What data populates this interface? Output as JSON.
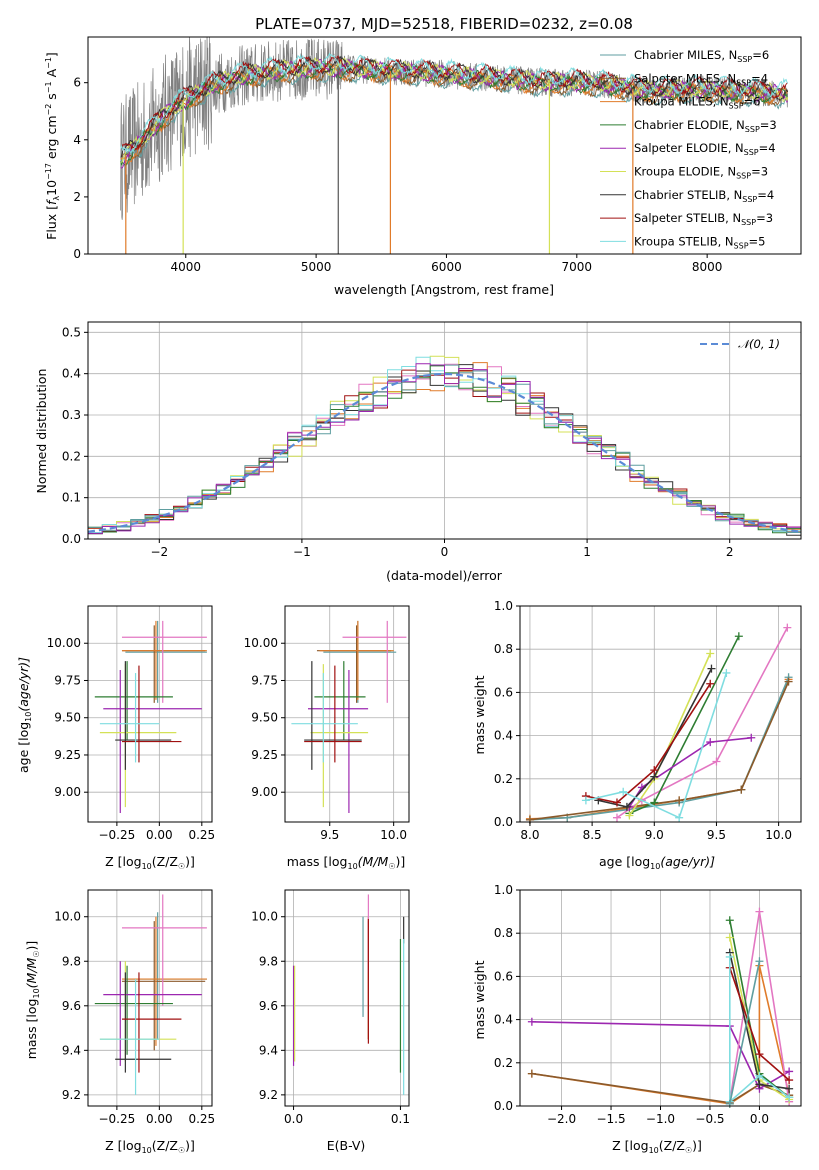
{
  "colors": {
    "c_miles_chab": "#5f9ea0",
    "c_miles_salp": "#8b5a2b",
    "c_miles_krou": "#e07b2a",
    "c_elodie_chab": "#2e7d32",
    "c_elodie_salp": "#9c27b0",
    "c_elodie_krou": "#d4e157",
    "c_stelib_chab": "#333333",
    "c_stelib_salp": "#a01010",
    "c_stelib_krou": "#7fdde0",
    "normal": "#5b8bd6",
    "gauss_axis_pink": "#e377c2",
    "grid": "#b0b0b0"
  },
  "chart_data": [
    {
      "id": "spectrum",
      "type": "line",
      "title": "PLATE=0737, MJD=52518, FIBERID=0232, z=0.08",
      "xlabel": "wavelength [Angstrom, rest frame]",
      "ylabel_parts": [
        "Flux [",
        "f",
        "λ",
        "10",
        "−17",
        " erg cm",
        "−2",
        " s",
        "−1",
        " A",
        "−1",
        "]"
      ],
      "xlim": [
        3250,
        8720
      ],
      "ylim": [
        0,
        7.6
      ],
      "xticks": [
        4000,
        5000,
        6000,
        7000,
        8000
      ],
      "yticks": [
        0,
        2,
        4,
        6
      ],
      "continuum": {
        "x": [
          3500,
          3550,
          3650,
          3750,
          3850,
          4000,
          4200,
          4400,
          4600,
          4800,
          5000,
          5200,
          5400,
          5600,
          5800,
          6000,
          6200,
          6400,
          6600,
          6800,
          7000,
          7200,
          7400,
          7600,
          7800,
          8000,
          8200,
          8400,
          8600
        ],
        "y": [
          3.3,
          3.5,
          3.9,
          4.4,
          4.9,
          5.4,
          5.9,
          6.2,
          6.35,
          6.45,
          6.5,
          6.5,
          6.45,
          6.4,
          6.35,
          6.3,
          6.2,
          6.15,
          6.05,
          6.0,
          6.0,
          5.95,
          5.8,
          5.7,
          5.75,
          5.75,
          5.7,
          5.65,
          5.6
        ]
      },
      "legend": [
        {
          "label": "Chabrier MILES, N",
          "sub": "SSP",
          "tail": "=6"
        },
        {
          "label": "Salpeter MILES, N",
          "sub": "SSP",
          "tail": "=4"
        },
        {
          "label": "Kroupa MILES, N",
          "sub": "SSP",
          "tail": "=6"
        },
        {
          "label": "Chabrier ELODIE, N",
          "sub": "SSP",
          "tail": "=3"
        },
        {
          "label": "Salpeter ELODIE, N",
          "sub": "SSP",
          "tail": "=4"
        },
        {
          "label": "Kroupa ELODIE, N",
          "sub": "SSP",
          "tail": "=3"
        },
        {
          "label": "Chabrier STELIB, N",
          "sub": "SSP",
          "tail": "=4"
        },
        {
          "label": "Salpeter STELIB, N",
          "sub": "SSP",
          "tail": "=3"
        },
        {
          "label": "Kroupa STELIB, N",
          "sub": "SSP",
          "tail": "=5"
        }
      ],
      "legend_position": "right"
    },
    {
      "id": "residuals",
      "type": "line",
      "xlabel": "(data-model)/error",
      "ylabel": "Normed distribution",
      "xlim": [
        -2.5,
        2.5
      ],
      "ylim": [
        0,
        0.525
      ],
      "xticks": [
        -2,
        -1,
        0,
        1,
        2
      ],
      "yticks": [
        0.0,
        0.1,
        0.2,
        0.3,
        0.4,
        0.5
      ],
      "bin_width": 0.1,
      "bin_start": -2.5,
      "series_model": "N(0,1)",
      "legend": "𝒩(0, 1)",
      "legend_position": "top-right",
      "grid": true
    },
    {
      "id": "age_vs_Z",
      "type": "scatter",
      "xlabel": "Z [log",
      "xlabel_sub": "10",
      "xlabel_tail": "(Z/Z",
      "xlabel_end": ")]",
      "ylabel": "age  [log",
      "ylabel_sub": "10",
      "ylabel_tail": "(age/yr)]",
      "xlim": [
        -0.42,
        0.31
      ],
      "ylim": [
        8.8,
        10.25
      ],
      "xticks": [
        -0.25,
        0.0,
        0.25
      ],
      "xtick_labels": [
        "−0.25",
        "0.00",
        "0.25"
      ],
      "yticks": [
        9.0,
        9.25,
        9.5,
        9.75,
        10.0
      ],
      "ytick_labels": [
        "9.00",
        "9.25",
        "9.50",
        "9.75",
        "10.00"
      ],
      "grid": true
    },
    {
      "id": "age_vs_mass",
      "type": "scatter",
      "xlabel": "mass [log",
      "xlabel_sub": "10",
      "xlabel_tail": "(M/M",
      "xlabel_end": ")]",
      "xlim": [
        9.15,
        10.12
      ],
      "ylim": [
        8.8,
        10.25
      ],
      "xticks": [
        9.5,
        10.0
      ],
      "xtick_labels": [
        "9.5",
        "10.0"
      ],
      "yticks": [
        9.0,
        9.25,
        9.5,
        9.75,
        10.0
      ],
      "ytick_labels": [
        "9.00",
        "9.25",
        "9.50",
        "9.75",
        "10.00"
      ],
      "grid": true
    },
    {
      "id": "weight_vs_age",
      "type": "line",
      "xlabel": "age  [log",
      "xlabel_sub": "10",
      "xlabel_tail": "(age/yr)]",
      "ylabel": "mass weight",
      "xlim": [
        7.92,
        10.18
      ],
      "ylim": [
        0,
        1.0
      ],
      "xticks": [
        8.0,
        8.5,
        9.0,
        9.5,
        10.0
      ],
      "xtick_labels": [
        "8.0",
        "8.5",
        "9.0",
        "9.5",
        "10.0"
      ],
      "yticks": [
        0.0,
        0.2,
        0.4,
        0.6,
        0.8,
        1.0
      ],
      "ytick_labels": [
        "0.0",
        "0.2",
        "0.4",
        "0.6",
        "0.8",
        "1.0"
      ],
      "grid": true,
      "series": [
        {
          "color": "c_miles_krou",
          "x": [
            8.0,
            8.3,
            9.2,
            9.7,
            10.08
          ],
          "y": [
            0.015,
            0.02,
            0.1,
            0.15,
            0.66
          ]
        },
        {
          "color": "c_miles_chab",
          "x": [
            8.0,
            8.3,
            9.2,
            9.7,
            10.08
          ],
          "y": [
            0.01,
            0.02,
            0.09,
            0.15,
            0.67
          ]
        },
        {
          "color": "c_miles_salp",
          "x": [
            8.0,
            9.2,
            9.7,
            10.08
          ],
          "y": [
            0.01,
            0.1,
            0.15,
            0.65
          ]
        },
        {
          "color": "gauss_axis_pink",
          "x": [
            8.7,
            8.9,
            9.5,
            10.07
          ],
          "y": [
            0.02,
            0.1,
            0.28,
            0.9
          ]
        },
        {
          "color": "c_elodie_chab",
          "x": [
            8.8,
            9.0,
            9.68
          ],
          "y": [
            0.04,
            0.09,
            0.86
          ]
        },
        {
          "color": "c_elodie_salp",
          "x": [
            8.8,
            8.9,
            9.45,
            9.78
          ],
          "y": [
            0.07,
            0.16,
            0.37,
            0.39
          ]
        },
        {
          "color": "c_elodie_krou",
          "x": [
            8.8,
            9.0,
            9.45
          ],
          "y": [
            0.03,
            0.2,
            0.78
          ]
        },
        {
          "color": "c_stelib_chab",
          "x": [
            8.55,
            8.78,
            9.0,
            9.46
          ],
          "y": [
            0.1,
            0.07,
            0.21,
            0.71
          ]
        },
        {
          "color": "c_stelib_salp",
          "x": [
            8.45,
            8.7,
            9.0,
            9.45
          ],
          "y": [
            0.12,
            0.09,
            0.24,
            0.64
          ]
        },
        {
          "color": "c_stelib_krou",
          "x": [
            8.45,
            8.75,
            9.2,
            9.58
          ],
          "y": [
            0.1,
            0.14,
            0.02,
            0.69
          ]
        }
      ]
    },
    {
      "id": "mass_vs_Z",
      "type": "scatter",
      "xlabel": "Z [log",
      "xlabel_sub": "10",
      "xlabel_tail": "(Z/Z",
      "xlabel_end": ")]",
      "ylabel": "mass [log",
      "ylabel_sub": "10",
      "ylabel_tail": "(M/M",
      "ylabel_end": ")]",
      "xlim": [
        -0.42,
        0.31
      ],
      "ylim": [
        9.15,
        10.12
      ],
      "xticks": [
        -0.25,
        0.0,
        0.25
      ],
      "xtick_labels": [
        "−0.25",
        "0.00",
        "0.25"
      ],
      "yticks": [
        9.2,
        9.4,
        9.6,
        9.8,
        10.0
      ],
      "ytick_labels": [
        "9.2",
        "9.4",
        "9.6",
        "9.8",
        "10.0"
      ],
      "grid": true
    },
    {
      "id": "mass_vs_EBV",
      "type": "scatter",
      "xlabel": "E(B-V)",
      "xlim": [
        -0.008,
        0.108
      ],
      "ylim": [
        9.15,
        10.12
      ],
      "xticks": [
        0.0,
        0.1
      ],
      "xtick_labels": [
        "0.0",
        "0.1"
      ],
      "yticks": [
        9.2,
        9.4,
        9.6,
        9.8,
        10.0
      ],
      "ytick_labels": [
        "9.2",
        "9.4",
        "9.6",
        "9.8",
        "10.0"
      ],
      "grid": true
    },
    {
      "id": "weight_vs_Z",
      "type": "line",
      "xlabel": "Z [log",
      "xlabel_sub": "10",
      "xlabel_tail": "(Z/Z",
      "xlabel_end": ")]",
      "ylabel": "mass weight",
      "xlim": [
        -2.42,
        0.42
      ],
      "ylim": [
        0,
        1.0
      ],
      "xticks": [
        -2.0,
        -1.5,
        -1.0,
        -0.5,
        0.0
      ],
      "xtick_labels": [
        "−2.0",
        "−1.5",
        "−1.0",
        "−0.5",
        "0.0"
      ],
      "yticks": [
        0.0,
        0.2,
        0.4,
        0.6,
        0.8,
        1.0
      ],
      "ytick_labels": [
        "0.0",
        "0.2",
        "0.4",
        "0.6",
        "0.8",
        "1.0"
      ],
      "grid": true,
      "series": [
        {
          "color": "c_miles_krou",
          "x": [
            -2.3,
            -0.3,
            0.0,
            0.0,
            0.3
          ],
          "y": [
            0.15,
            0.01,
            0.1,
            0.65,
            0.05
          ]
        },
        {
          "color": "c_miles_salp",
          "x": [
            -2.3,
            -0.3,
            0.0,
            0.3
          ],
          "y": [
            0.15,
            0.015,
            0.1,
            0.05
          ]
        },
        {
          "color": "c_elodie_salp",
          "x": [
            -2.3,
            -0.3,
            0.0,
            0.3
          ],
          "y": [
            0.39,
            0.37,
            0.08,
            0.16
          ]
        },
        {
          "color": "gauss_axis_pink",
          "x": [
            -0.3,
            0.0,
            0.3
          ],
          "y": [
            0.02,
            0.9,
            0.02
          ]
        },
        {
          "color": "c_elodie_chab",
          "x": [
            -0.3,
            0.0,
            0.3
          ],
          "y": [
            0.86,
            0.15,
            0.04
          ]
        },
        {
          "color": "c_elodie_krou",
          "x": [
            -0.3,
            0.0,
            0.3
          ],
          "y": [
            0.78,
            0.12,
            0.03
          ]
        },
        {
          "color": "c_stelib_chab",
          "x": [
            -0.3,
            0.0,
            0.3
          ],
          "y": [
            0.71,
            0.1,
            0.08
          ]
        },
        {
          "color": "c_stelib_salp",
          "x": [
            -0.3,
            0.0,
            0.3
          ],
          "y": [
            0.64,
            0.24,
            0.12
          ]
        },
        {
          "color": "c_stelib_krou",
          "x": [
            -0.3,
            -0.3,
            0.0,
            0.3
          ],
          "y": [
            0.69,
            0.02,
            0.14,
            0.04
          ]
        },
        {
          "color": "c_miles_chab",
          "x": [
            -0.3,
            0.0
          ],
          "y": [
            0.01,
            0.67
          ]
        }
      ]
    }
  ],
  "errorbars": {
    "models": [
      {
        "color": "c_miles_chab",
        "Z": -0.01,
        "Zlo": -0.2,
        "Zhi": 0.28,
        "age": 9.94,
        "agelo": 9.6,
        "agehi": 10.15,
        "mass": 9.72,
        "masslo": 9.45,
        "masshi": 10.02,
        "ebv": 0.065,
        "ebvlo": 9.55,
        "ebvhi": 10.0
      },
      {
        "color": "c_miles_salp",
        "Z": -0.03,
        "Zlo": -0.22,
        "Zhi": 0.27,
        "age": 9.95,
        "agelo": 9.6,
        "agehi": 10.12,
        "mass": 9.71,
        "masslo": 9.4,
        "masshi": 9.98,
        "ebv": 0.07,
        "ebvlo": 9.45,
        "ebvhi": 9.98
      },
      {
        "color": "c_miles_krou",
        "Z": -0.02,
        "Zlo": -0.22,
        "Zhi": 0.28,
        "age": 9.95,
        "agelo": 9.62,
        "agehi": 10.15,
        "mass": 9.72,
        "masslo": 9.42,
        "masshi": 10.0,
        "ebv": 0.07,
        "ebvlo": 9.45,
        "ebvhi": 10.0
      },
      {
        "color": "gauss_axis_pink",
        "Z": 0.02,
        "Zlo": -0.22,
        "Zhi": 0.28,
        "age": 10.04,
        "agelo": 9.6,
        "agehi": 10.15,
        "mass": 9.95,
        "masslo": 9.6,
        "masshi": 10.1,
        "ebv": 0.07,
        "ebvlo": 9.75,
        "ebvhi": 10.1
      },
      {
        "color": "c_elodie_chab",
        "Z": -0.19,
        "Zlo": -0.38,
        "Zhi": 0.08,
        "age": 9.64,
        "agelo": 9.35,
        "agehi": 9.88,
        "mass": 9.61,
        "masslo": 9.38,
        "masshi": 9.78,
        "ebv": 0.1,
        "ebvlo": 9.3,
        "ebvhi": 9.9
      },
      {
        "color": "c_elodie_salp",
        "Z": -0.23,
        "Zlo": -0.33,
        "Zhi": 0.25,
        "age": 9.56,
        "agelo": 8.86,
        "agehi": 9.82,
        "mass": 9.65,
        "masslo": 9.33,
        "masshi": 9.8,
        "ebv": 0.0,
        "ebvlo": 9.33,
        "ebvhi": 9.78
      },
      {
        "color": "c_elodie_krou",
        "Z": -0.2,
        "Zlo": -0.35,
        "Zhi": 0.1,
        "age": 9.4,
        "agelo": 8.9,
        "agehi": 9.86,
        "mass": 9.45,
        "masslo": 9.35,
        "masshi": 9.8,
        "ebv": 0.001,
        "ebvlo": 9.35,
        "ebvhi": 9.78
      },
      {
        "color": "c_stelib_chab",
        "Z": -0.2,
        "Zlo": -0.26,
        "Zhi": 0.07,
        "age": 9.35,
        "agelo": 9.15,
        "agehi": 9.88,
        "mass": 9.36,
        "masslo": 9.3,
        "masshi": 9.75,
        "ebv": 0.103,
        "ebvlo": 9.88,
        "ebvhi": 10.0
      },
      {
        "color": "c_stelib_salp",
        "Z": -0.12,
        "Zlo": -0.22,
        "Zhi": 0.13,
        "age": 9.34,
        "agelo": 9.2,
        "agehi": 9.85,
        "mass": 9.54,
        "masslo": 9.3,
        "masshi": 9.75,
        "ebv": 0.07,
        "ebvlo": 9.43,
        "ebvhi": 9.99
      },
      {
        "color": "c_stelib_krou",
        "Z": -0.14,
        "Zlo": -0.35,
        "Zhi": 0.0,
        "age": 9.46,
        "agelo": 9.2,
        "agehi": 9.8,
        "mass": 9.45,
        "masslo": 9.2,
        "masshi": 9.72,
        "ebv": 0.103,
        "ebvlo": 9.2,
        "ebvhi": 9.9
      }
    ]
  }
}
